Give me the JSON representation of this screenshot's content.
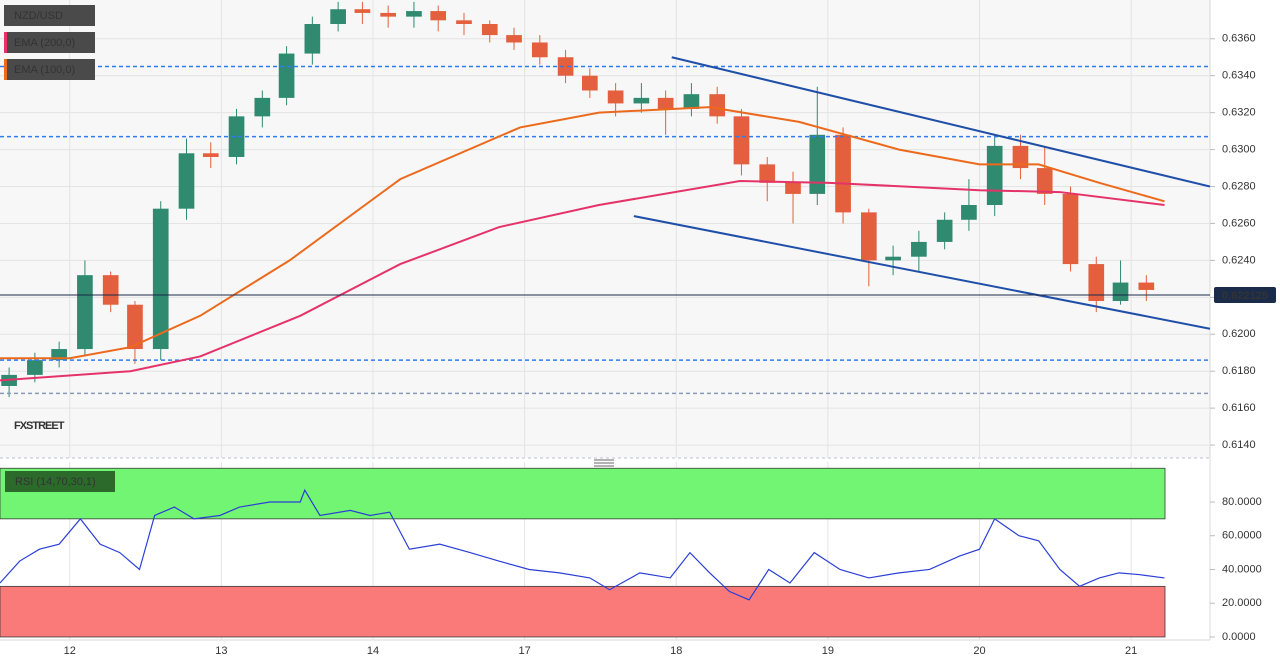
{
  "chart_data": [
    {
      "type": "candlestick",
      "title": "NZD/USD",
      "watermark": "FXSTREET",
      "up_color": "#2f8a70",
      "down_color": "#e35f3e",
      "x": [
        -0.4,
        -0.23,
        -0.07,
        0.1,
        0.27,
        0.43,
        0.6,
        0.77,
        0.93,
        1.1,
        1.27,
        1.43,
        1.6,
        1.77,
        1.93,
        2.1,
        2.27,
        2.43,
        2.6,
        2.77,
        2.93,
        3.1,
        3.27,
        3.43,
        3.6,
        3.77,
        3.93,
        4.1,
        4.27,
        4.43,
        4.6,
        4.77,
        4.93,
        5.1,
        5.27,
        5.43,
        5.6,
        5.77,
        5.93,
        6.1,
        6.27,
        6.43,
        6.6,
        6.77,
        6.93,
        7.1
      ],
      "open": [
        0.6172,
        0.6178,
        0.6186,
        0.6192,
        0.6232,
        0.6216,
        0.6192,
        0.6268,
        0.6298,
        0.6296,
        0.6318,
        0.6328,
        0.6352,
        0.6368,
        0.6376,
        0.6374,
        0.6372,
        0.6375,
        0.637,
        0.6368,
        0.6362,
        0.6358,
        0.635,
        0.634,
        0.6332,
        0.6325,
        0.6328,
        0.6322,
        0.633,
        0.6318,
        0.6292,
        0.6282,
        0.6276,
        0.6308,
        0.6266,
        0.624,
        0.6242,
        0.625,
        0.6262,
        0.627,
        0.6302,
        0.629,
        0.6276,
        0.6238,
        0.6218,
        0.6228
      ],
      "high": [
        0.6182,
        0.619,
        0.6196,
        0.624,
        0.6234,
        0.6218,
        0.6272,
        0.6306,
        0.6304,
        0.6322,
        0.6332,
        0.6356,
        0.6372,
        0.638,
        0.638,
        0.6378,
        0.638,
        0.6378,
        0.6374,
        0.637,
        0.6366,
        0.6362,
        0.6354,
        0.6344,
        0.6336,
        0.6336,
        0.6332,
        0.6336,
        0.6334,
        0.6322,
        0.6296,
        0.6288,
        0.6334,
        0.6312,
        0.6268,
        0.6248,
        0.6256,
        0.6266,
        0.6284,
        0.6308,
        0.6308,
        0.6302,
        0.628,
        0.6242,
        0.624,
        0.6232
      ],
      "low": [
        0.6166,
        0.6174,
        0.6182,
        0.6188,
        0.6212,
        0.6184,
        0.6186,
        0.6262,
        0.629,
        0.6292,
        0.6312,
        0.6324,
        0.6346,
        0.6364,
        0.6368,
        0.6366,
        0.6366,
        0.6364,
        0.6362,
        0.6358,
        0.6354,
        0.6346,
        0.6336,
        0.6328,
        0.6318,
        0.632,
        0.6308,
        0.6318,
        0.6314,
        0.6286,
        0.6272,
        0.626,
        0.627,
        0.626,
        0.6226,
        0.6232,
        0.6234,
        0.6246,
        0.6256,
        0.6264,
        0.6284,
        0.627,
        0.6234,
        0.6212,
        0.6216,
        0.6218
      ],
      "close": [
        0.6178,
        0.6186,
        0.6192,
        0.6232,
        0.6216,
        0.6192,
        0.6268,
        0.6298,
        0.6296,
        0.6318,
        0.6328,
        0.6352,
        0.6368,
        0.6376,
        0.6374,
        0.6372,
        0.6375,
        0.637,
        0.6368,
        0.6362,
        0.6358,
        0.635,
        0.634,
        0.6332,
        0.6325,
        0.6328,
        0.6322,
        0.633,
        0.6318,
        0.6292,
        0.6282,
        0.6276,
        0.6308,
        0.6266,
        0.624,
        0.6242,
        0.625,
        0.6262,
        0.627,
        0.6302,
        0.629,
        0.6276,
        0.6238,
        0.6218,
        0.6228,
        0.6224
      ],
      "series": [
        {
          "name": "EMA (200,0)",
          "color": "#e5336a",
          "x": [
            -0.46,
            0.4,
            0.86,
            1.52,
            2.18,
            2.83,
            3.49,
            4.42,
            5.01,
            6.0,
            6.53,
            7.22
          ],
          "values": [
            0.6175,
            0.618,
            0.6188,
            0.621,
            0.6238,
            0.6258,
            0.627,
            0.6283,
            0.6282,
            0.6278,
            0.6277,
            0.627
          ]
        },
        {
          "name": "EMA (100,0)",
          "color": "#ec6a1c",
          "x": [
            -0.46,
            0.0,
            0.4,
            0.86,
            1.45,
            2.18,
            2.97,
            3.49,
            4.22,
            4.81,
            5.47,
            6.0,
            6.39,
            6.79,
            7.22
          ],
          "values": [
            0.6187,
            0.6187,
            0.6193,
            0.621,
            0.624,
            0.6284,
            0.6312,
            0.632,
            0.6323,
            0.6315,
            0.63,
            0.6292,
            0.6292,
            0.6282,
            0.6272
          ]
        }
      ],
      "trendlines": [
        {
          "color": "#1f4fa8",
          "x": [
            3.97,
            7.52
          ],
          "values": [
            0.635,
            0.628
          ]
        },
        {
          "color": "#1f4fa8",
          "x": [
            3.72,
            7.52
          ],
          "values": [
            0.6264,
            0.6203
          ]
        }
      ],
      "levels": [
        {
          "value": 0.6345,
          "color": "#2f7cf0"
        },
        {
          "value": 0.6307,
          "color": "#2f7cf0"
        },
        {
          "value": 0.6186,
          "color": "#2f7cf0"
        },
        {
          "value": 0.6168,
          "color": "#8a99b8"
        }
      ],
      "last_price": {
        "value": 0.622125,
        "label": "0.622125"
      },
      "xlim": [
        -0.46,
        7.52
      ],
      "ylim": [
        0.6133,
        0.6381
      ],
      "yticks": [
        {
          "value": 0.614,
          "label": "0.6140"
        },
        {
          "value": 0.616,
          "label": "0.6160"
        },
        {
          "value": 0.618,
          "label": "0.6180"
        },
        {
          "value": 0.62,
          "label": "0.6200"
        },
        {
          "value": 0.622,
          "label": "0.6220"
        },
        {
          "value": 0.624,
          "label": "0.6240"
        },
        {
          "value": 0.626,
          "label": "0.6260"
        },
        {
          "value": 0.628,
          "label": "0.6280"
        },
        {
          "value": 0.63,
          "label": "0.6300"
        },
        {
          "value": 0.632,
          "label": "0.6320"
        },
        {
          "value": 0.634,
          "label": "0.6340"
        },
        {
          "value": 0.636,
          "label": "0.6360"
        }
      ],
      "grid": true
    },
    {
      "type": "line",
      "title": "RSI (14,70,30,1)",
      "series": [
        {
          "name": "RSI",
          "color": "#2b3fd6",
          "x": [
            -0.46,
            -0.33,
            -0.2,
            -0.07,
            0.07,
            0.2,
            0.33,
            0.46,
            0.56,
            0.69,
            0.82,
            0.99,
            1.12,
            1.32,
            1.52,
            1.55,
            1.65,
            1.85,
            1.98,
            2.11,
            2.24,
            2.44,
            2.64,
            2.83,
            3.03,
            3.23,
            3.43,
            3.56,
            3.76,
            3.96,
            4.09,
            4.22,
            4.35,
            4.48,
            4.61,
            4.75,
            4.91,
            5.08,
            5.27,
            5.47,
            5.67,
            5.87,
            6.0,
            6.1,
            6.26,
            6.39,
            6.53,
            6.66,
            6.79,
            6.92,
            7.05,
            7.22
          ],
          "values": [
            32,
            45,
            52,
            55,
            70,
            55,
            50,
            40,
            72,
            77,
            70,
            72,
            77,
            80,
            80,
            87,
            72,
            75,
            72,
            74,
            52,
            55,
            50,
            45,
            40,
            38,
            35,
            28,
            38,
            35,
            50,
            38,
            27,
            22,
            40,
            32,
            50,
            40,
            35,
            38,
            40,
            48,
            52,
            70,
            60,
            57,
            40,
            30,
            35,
            38,
            37,
            35
          ]
        }
      ],
      "zones": [
        {
          "from": 70,
          "to": 100,
          "color": "#72f572"
        },
        {
          "from": 0,
          "to": 30,
          "color": "#fa7a7a"
        }
      ],
      "xlim": [
        -0.46,
        7.52
      ],
      "ylim": [
        -1.8,
        103.7
      ],
      "yticks": [
        {
          "value": 0,
          "label": "0.0000"
        },
        {
          "value": 20,
          "label": "20.0000"
        },
        {
          "value": 40,
          "label": "40.0000"
        },
        {
          "value": 60,
          "label": "60.0000"
        },
        {
          "value": 80,
          "label": "80.0000"
        }
      ],
      "xticks": [
        {
          "value": 0,
          "label": "12"
        },
        {
          "value": 1,
          "label": "13"
        },
        {
          "value": 2,
          "label": "14"
        },
        {
          "value": 3,
          "label": "17"
        },
        {
          "value": 4,
          "label": "18"
        },
        {
          "value": 5,
          "label": "19"
        },
        {
          "value": 6,
          "label": "20"
        },
        {
          "value": 7,
          "label": "21"
        }
      ]
    }
  ]
}
